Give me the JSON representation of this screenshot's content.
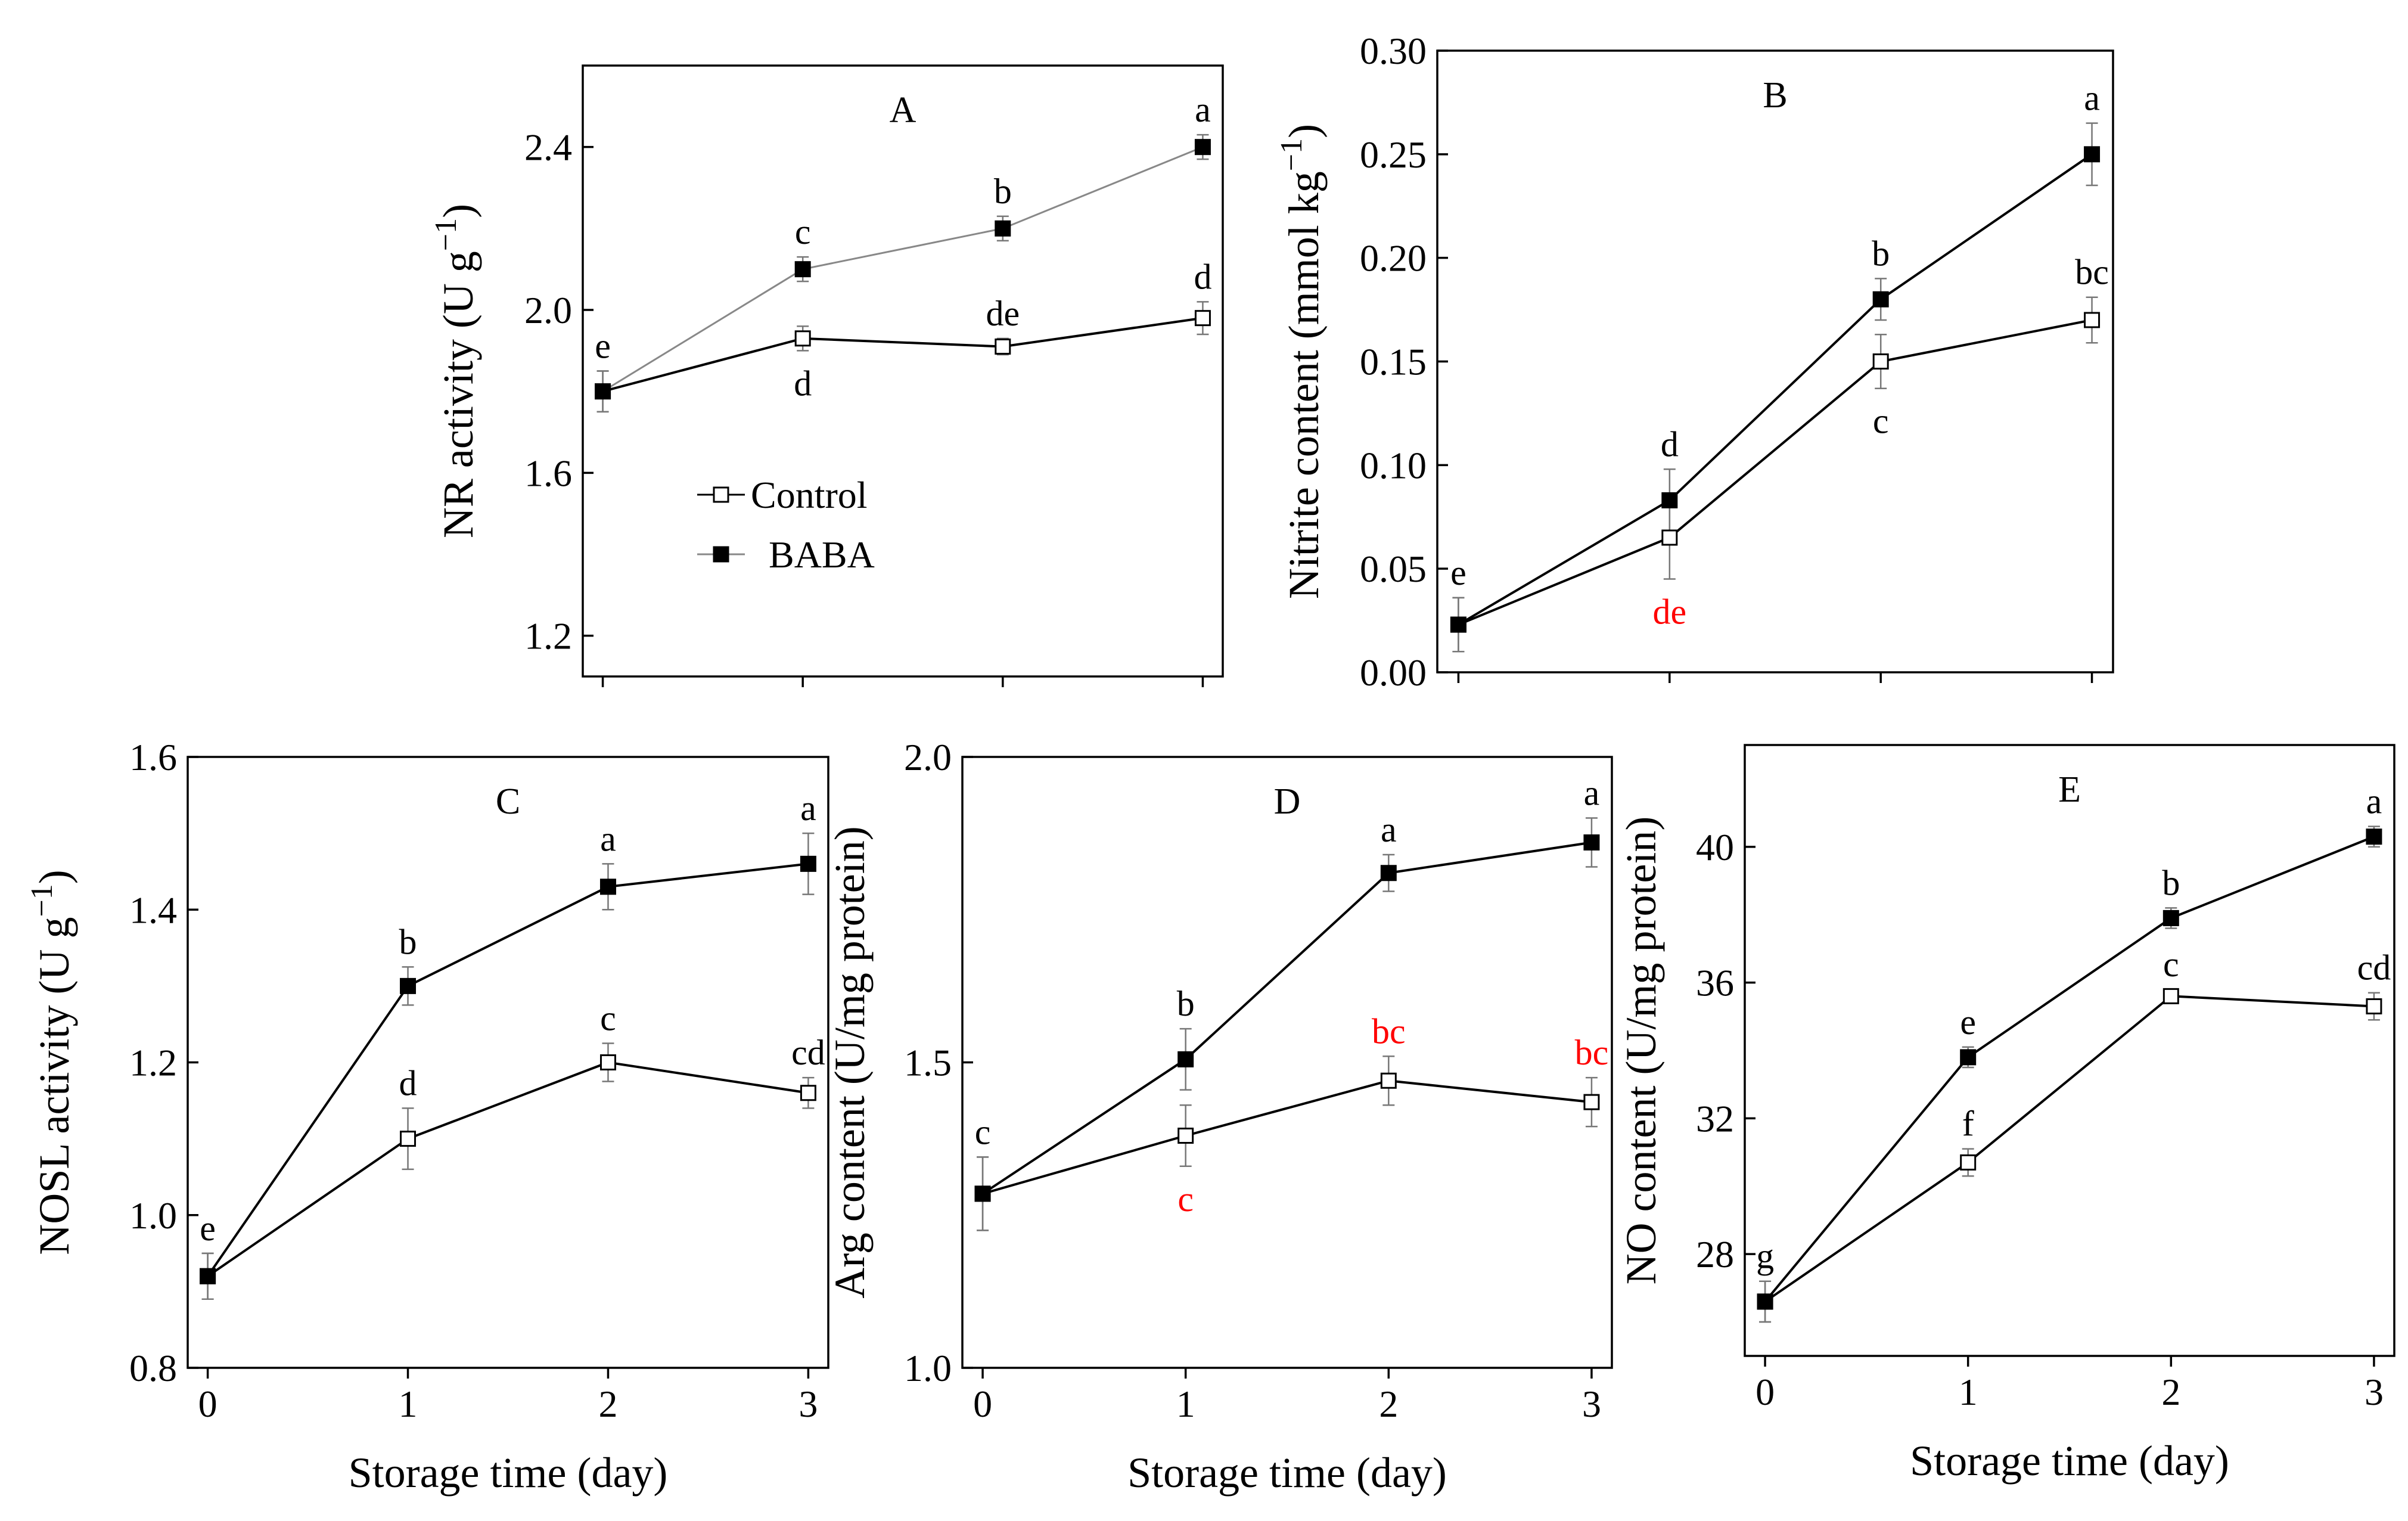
{
  "chart_data": [
    {
      "id": "A",
      "type": "line",
      "panel_label": "A",
      "ylabel": "NR activity (U g⁻¹)",
      "xlabel": "",
      "x": [
        0,
        1,
        2,
        3
      ],
      "xlim": [
        -0.1,
        3.1
      ],
      "ylim": [
        1.1,
        2.6
      ],
      "yticks": [
        1.2,
        1.6,
        2.0,
        2.4
      ],
      "ytick_labels": [
        "1.2",
        "1.6",
        "2.0",
        "2.4"
      ],
      "xtick_labels": [],
      "series": [
        {
          "name": "Control",
          "marker": "open-square",
          "line_color": "#000000",
          "values": [
            1.8,
            1.93,
            1.91,
            1.98
          ],
          "errors": [
            0.05,
            0.03,
            0.02,
            0.04
          ],
          "labels": [
            "",
            "d",
            "de",
            "d"
          ],
          "label_pos": [
            "",
            "below",
            "above",
            "above"
          ],
          "label_colors": [
            "",
            "#000000",
            "#000000",
            "#000000"
          ]
        },
        {
          "name": "BABA",
          "marker": "filled-square",
          "line_color": "#888888",
          "values": [
            1.8,
            2.1,
            2.2,
            2.4
          ],
          "errors": [
            0.05,
            0.03,
            0.03,
            0.03
          ],
          "labels": [
            "e",
            "c",
            "b",
            "a"
          ],
          "label_pos": [
            "above",
            "above",
            "above",
            "above"
          ],
          "label_colors": [
            "#000000",
            "#000000",
            "#000000",
            "#000000"
          ]
        }
      ],
      "legend": {
        "placement": "center-left",
        "entries": [
          "Control",
          "BABA"
        ]
      }
    },
    {
      "id": "B",
      "type": "line",
      "panel_label": "B",
      "ylabel": "Nitrite content (mmol kg⁻¹)",
      "xlabel": "",
      "x": [
        0,
        1,
        2,
        3
      ],
      "xlim": [
        -0.1,
        3.1
      ],
      "ylim": [
        0.0,
        0.3
      ],
      "yticks": [
        0.0,
        0.05,
        0.1,
        0.15,
        0.2,
        0.25,
        0.3
      ],
      "ytick_labels": [
        "0.00",
        "0.05",
        "0.10",
        "0.15",
        "0.20",
        "0.25",
        "0.30"
      ],
      "xtick_labels": [],
      "series": [
        {
          "name": "Control",
          "marker": "open-square",
          "line_color": "#000000",
          "values": [
            0.023,
            0.065,
            0.15,
            0.17
          ],
          "errors": [
            0.013,
            0.02,
            0.013,
            0.011
          ],
          "labels": [
            "",
            "de",
            "c",
            "bc"
          ],
          "label_pos": [
            "",
            "below",
            "below",
            "above"
          ],
          "label_colors": [
            "",
            "#ff0000",
            "#000000",
            "#000000"
          ]
        },
        {
          "name": "BABA",
          "marker": "filled-square",
          "line_color": "#000000",
          "values": [
            0.023,
            0.083,
            0.18,
            0.25
          ],
          "errors": [
            0.013,
            0.015,
            0.01,
            0.015
          ],
          "labels": [
            "e",
            "d",
            "b",
            "a"
          ],
          "label_pos": [
            "above",
            "above",
            "above",
            "above"
          ],
          "label_colors": [
            "#000000",
            "#000000",
            "#000000",
            "#000000"
          ]
        }
      ]
    },
    {
      "id": "C",
      "type": "line",
      "panel_label": "C",
      "ylabel": "NOSL activity (U g⁻¹)",
      "xlabel": "Storage time (day)",
      "x": [
        0,
        1,
        2,
        3
      ],
      "xlim": [
        -0.1,
        3.1
      ],
      "ylim": [
        0.8,
        1.6
      ],
      "yticks": [
        0.8,
        1.0,
        1.2,
        1.4,
        1.6
      ],
      "ytick_labels": [
        "0.8",
        "1.0",
        "1.2",
        "1.4",
        "1.6"
      ],
      "xtick_labels": [
        "0",
        "1",
        "2",
        "3"
      ],
      "series": [
        {
          "name": "Control",
          "marker": "open-square",
          "line_color": "#000000",
          "values": [
            0.92,
            1.1,
            1.2,
            1.16
          ],
          "errors": [
            0.03,
            0.04,
            0.025,
            0.02
          ],
          "labels": [
            "",
            "d",
            "c",
            "cd"
          ],
          "label_pos": [
            "",
            "above",
            "above",
            "above"
          ],
          "label_colors": [
            "",
            "#000000",
            "#000000",
            "#000000"
          ]
        },
        {
          "name": "BABA",
          "marker": "filled-square",
          "line_color": "#000000",
          "values": [
            0.92,
            1.3,
            1.43,
            1.46
          ],
          "errors": [
            0.03,
            0.025,
            0.03,
            0.04
          ],
          "labels": [
            "e",
            "b",
            "a",
            "a"
          ],
          "label_pos": [
            "above",
            "above",
            "above",
            "above"
          ],
          "label_colors": [
            "#000000",
            "#000000",
            "#000000",
            "#000000"
          ]
        }
      ]
    },
    {
      "id": "D",
      "type": "line",
      "panel_label": "D",
      "ylabel": "Arg content (U/mg protein)",
      "xlabel": "Storage time (day)",
      "x": [
        0,
        1,
        2,
        3
      ],
      "xlim": [
        -0.1,
        3.1
      ],
      "ylim": [
        1.0,
        2.0
      ],
      "yticks": [
        1.0,
        1.5,
        2.0
      ],
      "ytick_labels": [
        "1.0",
        "1.5",
        "2.0"
      ],
      "xtick_labels": [
        "0",
        "1",
        "2",
        "3"
      ],
      "series": [
        {
          "name": "Control",
          "marker": "open-square",
          "line_color": "#000000",
          "values": [
            1.285,
            1.38,
            1.47,
            1.435
          ],
          "errors": [
            0.06,
            0.05,
            0.04,
            0.04
          ],
          "labels": [
            "",
            "c",
            "bc",
            "bc"
          ],
          "label_pos": [
            "",
            "below",
            "above",
            "above"
          ],
          "label_colors": [
            "",
            "#ff0000",
            "#ff0000",
            "#ff0000"
          ]
        },
        {
          "name": "BABA",
          "marker": "filled-square",
          "line_color": "#000000",
          "values": [
            1.285,
            1.505,
            1.81,
            1.86
          ],
          "errors": [
            0.06,
            0.05,
            0.03,
            0.04
          ],
          "labels": [
            "c",
            "b",
            "a",
            "a"
          ],
          "label_pos": [
            "above",
            "above",
            "above",
            "above"
          ],
          "label_colors": [
            "#000000",
            "#000000",
            "#000000",
            "#000000"
          ]
        }
      ]
    },
    {
      "id": "E",
      "type": "line",
      "panel_label": "E",
      "ylabel": "NO content (U/mg protein)",
      "xlabel": "Storage time (day)",
      "x": [
        0,
        1,
        2,
        3
      ],
      "xlim": [
        -0.1,
        3.1
      ],
      "ylim": [
        25.0,
        43.0
      ],
      "yticks": [
        28,
        32,
        36,
        40
      ],
      "ytick_labels": [
        "28",
        "32",
        "36",
        "40"
      ],
      "xtick_labels": [
        "0",
        "1",
        "2",
        "3"
      ],
      "series": [
        {
          "name": "Control",
          "marker": "open-square",
          "line_color": "#000000",
          "values": [
            26.6,
            30.7,
            35.6,
            35.3
          ],
          "errors": [
            0.6,
            0.4,
            0.2,
            0.4
          ],
          "labels": [
            "",
            "f",
            "c",
            "cd"
          ],
          "label_pos": [
            "",
            "above",
            "above",
            "above"
          ],
          "label_colors": [
            "",
            "#000000",
            "#000000",
            "#000000"
          ]
        },
        {
          "name": "BABA",
          "marker": "filled-square",
          "line_color": "#000000",
          "values": [
            26.6,
            33.8,
            37.9,
            40.3
          ],
          "errors": [
            0.6,
            0.3,
            0.3,
            0.3
          ],
          "labels": [
            "g",
            "e",
            "b",
            "a"
          ],
          "label_pos": [
            "above",
            "above",
            "above",
            "above"
          ],
          "label_colors": [
            "#000000",
            "#000000",
            "#000000",
            "#000000"
          ]
        }
      ]
    }
  ]
}
